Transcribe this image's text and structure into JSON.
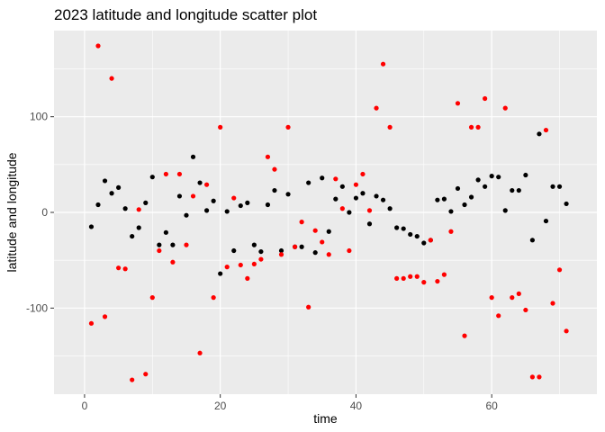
{
  "chart_data": {
    "type": "scatter",
    "title": "2023 latitude and longitude scatter plot",
    "xlabel": "time",
    "ylabel": "latitude and longitude",
    "xlim": [
      -4.5,
      75.5
    ],
    "ylim": [
      -190,
      190
    ],
    "x_ticks": [
      0,
      20,
      40,
      60
    ],
    "y_ticks": [
      -100,
      0,
      100
    ],
    "x_tick_labels": [
      "0",
      "20",
      "40",
      "60"
    ],
    "y_tick_labels": [
      "-100",
      "0",
      "100"
    ],
    "grid": true,
    "legend": "none",
    "panel_background": "#ebebeb",
    "series": [
      {
        "color": "#000000",
        "x": [
          1,
          2,
          3,
          4,
          5,
          6,
          7,
          8,
          9,
          10,
          11,
          12,
          13,
          14,
          15,
          16,
          17,
          18,
          19,
          20,
          21,
          22,
          23,
          24,
          25,
          26,
          27,
          28,
          29,
          30,
          31,
          32,
          33,
          34,
          35,
          36,
          37,
          38,
          39,
          40,
          41,
          42,
          43,
          44,
          45,
          46,
          47,
          48,
          49,
          50,
          51,
          52,
          53,
          54,
          55,
          56,
          57,
          58,
          59,
          60,
          61,
          62,
          63,
          64,
          65,
          66,
          67,
          68,
          69,
          70,
          71
        ],
        "y": [
          -15,
          8,
          33,
          20,
          26,
          4,
          -25,
          -16,
          10,
          37,
          -34,
          -21,
          -34,
          17,
          -3,
          58,
          31,
          2,
          12,
          -64,
          1,
          -40,
          7,
          10,
          -34,
          -41,
          8,
          23,
          -40,
          19,
          -36,
          -36,
          31,
          -42,
          36,
          -20,
          14,
          27,
          0,
          15,
          20,
          -12,
          17,
          13,
          4,
          -16,
          -17,
          -23,
          -25,
          -32,
          -29,
          13,
          14,
          1,
          25,
          8,
          16,
          34,
          27,
          38,
          37,
          2,
          23,
          23,
          39,
          -29,
          82,
          -9,
          27,
          27,
          9
        ]
      },
      {
        "color": "#ff0000",
        "x": [
          1,
          2,
          3,
          4,
          5,
          6,
          7,
          8,
          9,
          10,
          11,
          12,
          13,
          14,
          15,
          16,
          17,
          18,
          19,
          20,
          21,
          22,
          23,
          24,
          25,
          26,
          27,
          28,
          29,
          30,
          31,
          32,
          33,
          34,
          35,
          36,
          37,
          38,
          39,
          40,
          41,
          42,
          43,
          44,
          45,
          46,
          47,
          48,
          49,
          50,
          51,
          52,
          53,
          54,
          55,
          56,
          57,
          58,
          59,
          60,
          61,
          62,
          63,
          64,
          65,
          66,
          67,
          68,
          69,
          70,
          71
        ],
        "y": [
          -116,
          174,
          -109,
          140,
          -58,
          -59,
          -175,
          3,
          -169,
          -89,
          -40,
          40,
          -52,
          40,
          -34,
          17,
          -147,
          29,
          -89,
          89,
          -57,
          15,
          -55,
          -69,
          -54,
          -49,
          58,
          45,
          -44,
          89,
          -36,
          -10,
          -99,
          -19,
          -31,
          -44,
          35,
          4,
          -40,
          29,
          40,
          2,
          109,
          155,
          89,
          -69,
          -69,
          -67,
          -67,
          -73,
          -29,
          -72,
          -65,
          -20,
          114,
          -129,
          89,
          89,
          119,
          -89,
          -108,
          109,
          -89,
          -85,
          -102,
          -172,
          -172,
          86,
          -95,
          -60,
          -124
        ]
      }
    ]
  }
}
